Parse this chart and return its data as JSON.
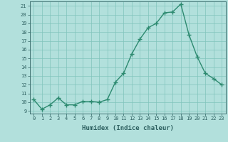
{
  "x": [
    0,
    1,
    2,
    3,
    4,
    5,
    6,
    7,
    8,
    9,
    10,
    11,
    12,
    13,
    14,
    15,
    16,
    17,
    18,
    19,
    20,
    21,
    22,
    23
  ],
  "y": [
    10.3,
    9.2,
    9.7,
    10.5,
    9.7,
    9.7,
    10.1,
    10.1,
    10.0,
    10.3,
    12.3,
    13.3,
    15.5,
    17.2,
    18.5,
    19.0,
    20.2,
    20.3,
    21.2,
    17.7,
    15.2,
    13.3,
    12.7,
    12.0
  ],
  "xlabel": "Humidex (Indice chaleur)",
  "ylim": [
    8.7,
    21.5
  ],
  "xlim": [
    -0.5,
    23.5
  ],
  "yticks": [
    9,
    10,
    11,
    12,
    13,
    14,
    15,
    16,
    17,
    18,
    19,
    20,
    21
  ],
  "xticks": [
    0,
    1,
    2,
    3,
    4,
    5,
    6,
    7,
    8,
    9,
    10,
    11,
    12,
    13,
    14,
    15,
    16,
    17,
    18,
    19,
    20,
    21,
    22,
    23
  ],
  "line_color": "#2d8a70",
  "marker_color": "#2d8a70",
  "bg_color": "#b2e0dc",
  "grid_color": "#80c4bc",
  "axis_color": "#2d6060"
}
